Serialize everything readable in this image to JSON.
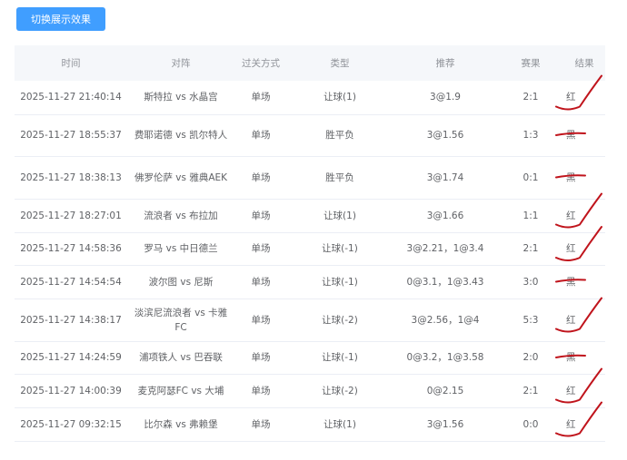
{
  "toolbar": {
    "toggle_label": "切换展示效果"
  },
  "table": {
    "headers": [
      "时间",
      "对阵",
      "过关方式",
      "类型",
      "推荐",
      "赛果",
      "结果"
    ],
    "rows": [
      {
        "time": "2025-11-27 21:40:14",
        "match": "斯特拉 vs 水晶宫",
        "pass": "单场",
        "type": "让球(1)",
        "rec": "3@1.9",
        "score": "2:1",
        "result": "红"
      },
      {
        "time": "2025-11-27 18:55:37",
        "match": "费耶诺德 vs 凯尔特人",
        "pass": "单场",
        "type": "胜平负",
        "rec": "3@1.56",
        "score": "1:3",
        "result": "黑"
      },
      {
        "time": "2025-11-27 18:38:13",
        "match": "佛罗伦萨 vs 雅典AEK",
        "pass": "单场",
        "type": "胜平负",
        "rec": "3@1.74",
        "score": "0:1",
        "result": "黑"
      },
      {
        "time": "2025-11-27 18:27:01",
        "match": "流浪者 vs 布拉加",
        "pass": "单场",
        "type": "让球(1)",
        "rec": "3@1.66",
        "score": "1:1",
        "result": "红"
      },
      {
        "time": "2025-11-27 14:58:36",
        "match": "罗马 vs 中日德兰",
        "pass": "单场",
        "type": "让球(-1)",
        "rec": "3@2.21，1@3.4",
        "score": "2:1",
        "result": "红"
      },
      {
        "time": "2025-11-27 14:54:54",
        "match": "波尔图 vs 尼斯",
        "pass": "单场",
        "type": "让球(-1)",
        "rec": "0@3.1，1@3.43",
        "score": "3:0",
        "result": "黑"
      },
      {
        "time": "2025-11-27 14:38:17",
        "match": "淡滨尼流浪者 vs 卡雅FC",
        "pass": "单场",
        "type": "让球(-2)",
        "rec": "3@2.56，1@4",
        "score": "5:3",
        "result": "红"
      },
      {
        "time": "2025-11-27 14:24:59",
        "match": "浦项铁人 vs 巴吞联",
        "pass": "单场",
        "type": "让球(-1)",
        "rec": "0@3.2，1@3.58",
        "score": "2:0",
        "result": "黑"
      },
      {
        "time": "2025-11-27 14:00:39",
        "match": "麦克阿瑟FC vs 大埔",
        "pass": "单场",
        "type": "让球(-2)",
        "rec": "0@2.15",
        "score": "2:1",
        "result": "红"
      },
      {
        "time": "2025-11-27 09:32:15",
        "match": "比尔森 vs 弗赖堡",
        "pass": "单场",
        "type": "让球(1)",
        "rec": "3@1.56",
        "score": "0:0",
        "result": "红"
      }
    ]
  },
  "colors": {
    "button": "#409eff",
    "annotation": "#c0141c"
  }
}
